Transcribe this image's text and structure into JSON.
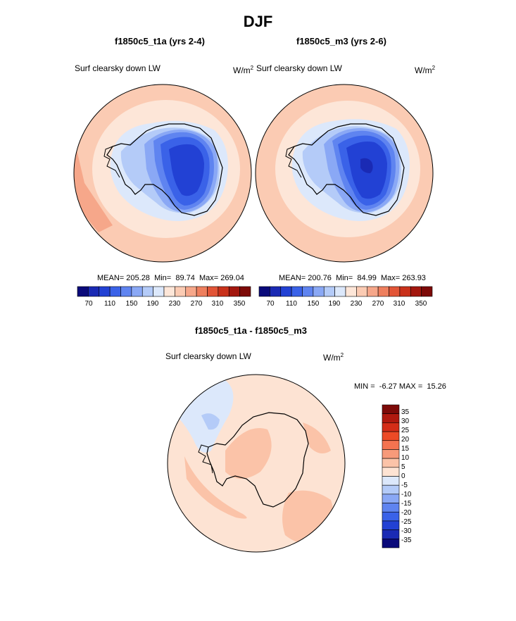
{
  "figure": {
    "title": "DJF",
    "colors": {
      "land_outline": "#000000",
      "map_edge": "#000000"
    }
  },
  "chart_data": [
    {
      "type": "heatmap",
      "projection": "polar-stereographic-south",
      "title": "f1850c5_t1a (yrs 2-4)",
      "variable_label": "Surf clearsky down LW",
      "units": "W/m",
      "units_sup": "2",
      "stats": {
        "mean": "205.28",
        "min": "89.74",
        "max": "269.04"
      },
      "stats_labels": {
        "mean": "MEAN=",
        "min": "Min=",
        "max": "Max="
      },
      "colorbar": {
        "orientation": "horizontal",
        "levels": [
          70,
          90,
          110,
          130,
          150,
          170,
          190,
          210,
          230,
          250,
          270,
          290,
          310,
          330,
          350
        ],
        "tick_labels": [
          "70",
          "110",
          "150",
          "190",
          "230",
          "270",
          "310",
          "350"
        ],
        "colors": [
          "#0a0a7a",
          "#1a2ab4",
          "#2241d4",
          "#3a62e8",
          "#5f84f0",
          "#8aa8f5",
          "#b4cbf8",
          "#dce8fb",
          "#fde6d8",
          "#fbcbb3",
          "#f6a78a",
          "#ee7f5e",
          "#e25537",
          "#c9311b",
          "#a3170e",
          "#7d0a08"
        ]
      },
      "field_levels": [
        {
          "value": 260,
          "color": "#f6a78a"
        },
        {
          "value": 250,
          "color": "#fbcbb3"
        },
        {
          "value": 230,
          "color": "#fde6d8"
        },
        {
          "value": 200,
          "color": "#dce8fb"
        },
        {
          "value": 180,
          "color": "#b4cbf8"
        },
        {
          "value": 160,
          "color": "#8aa8f5"
        },
        {
          "value": 140,
          "color": "#5f84f0"
        },
        {
          "value": 120,
          "color": "#3a62e8"
        },
        {
          "value": 100,
          "color": "#2241d4"
        }
      ]
    },
    {
      "type": "heatmap",
      "projection": "polar-stereographic-south",
      "title": "f1850c5_m3 (yrs 2-6)",
      "variable_label": "Surf clearsky down LW",
      "units": "W/m",
      "units_sup": "2",
      "stats": {
        "mean": "200.76",
        "min": "84.99",
        "max": "263.93"
      },
      "stats_labels": {
        "mean": "MEAN=",
        "min": "Min=",
        "max": "Max="
      },
      "colorbar": {
        "orientation": "horizontal",
        "levels": [
          70,
          90,
          110,
          130,
          150,
          170,
          190,
          210,
          230,
          250,
          270,
          290,
          310,
          330,
          350
        ],
        "tick_labels": [
          "70",
          "110",
          "150",
          "190",
          "230",
          "270",
          "310",
          "350"
        ],
        "colors": [
          "#0a0a7a",
          "#1a2ab4",
          "#2241d4",
          "#3a62e8",
          "#5f84f0",
          "#8aa8f5",
          "#b4cbf8",
          "#dce8fb",
          "#fde6d8",
          "#fbcbb3",
          "#f6a78a",
          "#ee7f5e",
          "#e25537",
          "#c9311b",
          "#a3170e",
          "#7d0a08"
        ]
      },
      "field_levels": [
        {
          "value": 255,
          "color": "#fbcbb3"
        },
        {
          "value": 230,
          "color": "#fde6d8"
        },
        {
          "value": 200,
          "color": "#dce8fb"
        },
        {
          "value": 180,
          "color": "#b4cbf8"
        },
        {
          "value": 160,
          "color": "#8aa8f5"
        },
        {
          "value": 140,
          "color": "#5f84f0"
        },
        {
          "value": 120,
          "color": "#3a62e8"
        },
        {
          "value": 100,
          "color": "#2241d4"
        },
        {
          "value": 85,
          "color": "#1a2ab4"
        }
      ]
    },
    {
      "type": "heatmap",
      "projection": "polar-stereographic-south",
      "title": "f1850c5_t1a - f1850c5_m3",
      "variable_label": "Surf clearsky down LW",
      "units": "W/m",
      "units_sup": "2",
      "stats": {
        "min": "-6.27",
        "max": "15.26"
      },
      "stats_labels": {
        "min": "MIN =",
        "max": "MAX ="
      },
      "colorbar": {
        "orientation": "vertical",
        "tick_labels": [
          "35",
          "30",
          "25",
          "20",
          "15",
          "10",
          "5",
          "0",
          "-5",
          "-10",
          "-15",
          "-20",
          "-25",
          "-30",
          "-35"
        ],
        "colors": [
          "#7d0a08",
          "#b0190f",
          "#d42d18",
          "#ec4a26",
          "#f47350",
          "#f79a7a",
          "#fbc3a8",
          "#fde3d3",
          "#dce8fb",
          "#b4cbf8",
          "#8aa8f5",
          "#5f84f0",
          "#3a62e8",
          "#2241d4",
          "#1a2ab4",
          "#0a0a7a"
        ]
      },
      "field_levels": [
        {
          "value": 10,
          "color": "#fbc3a8"
        },
        {
          "value": 5,
          "color": "#fde3d3"
        },
        {
          "value": -5,
          "color": "#dce8fb"
        },
        {
          "value": -10,
          "color": "#b4cbf8"
        }
      ]
    }
  ]
}
